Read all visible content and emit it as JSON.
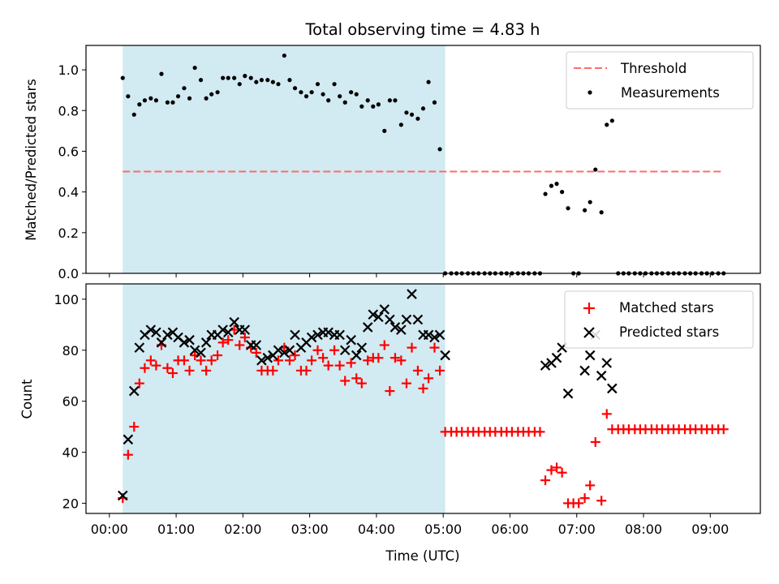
{
  "chart_data": [
    {
      "type": "scatter",
      "title": "Total observing time = 4.83 h",
      "ylabel": "Matched/Predicted stars",
      "xlabel": "",
      "xlim": [
        -0.35,
        9.75
      ],
      "ylim": [
        0,
        1.12
      ],
      "yticks": [
        0.0,
        0.2,
        0.4,
        0.6,
        0.8,
        1.0
      ],
      "ytick_labels": [
        "0.0",
        "0.2",
        "0.4",
        "0.6",
        "0.8",
        "1.0"
      ],
      "shaded_interval": {
        "x": [
          0.2,
          5.03
        ],
        "color": "#add8e6"
      },
      "legend_position": "upper right",
      "series": [
        {
          "name": "Threshold",
          "style": "dashed-line",
          "color": "#ff6b6b",
          "x": [
            0.2,
            9.2
          ],
          "y": [
            0.5,
            0.5
          ]
        },
        {
          "name": "Measurements",
          "style": "dot",
          "color": "#000000",
          "x": [
            0.2,
            0.28,
            0.37,
            0.45,
            0.53,
            0.62,
            0.7,
            0.78,
            0.87,
            0.95,
            1.03,
            1.12,
            1.2,
            1.28,
            1.37,
            1.45,
            1.53,
            1.62,
            1.7,
            1.78,
            1.87,
            1.95,
            2.03,
            2.12,
            2.2,
            2.28,
            2.37,
            2.45,
            2.53,
            2.62,
            2.7,
            2.78,
            2.87,
            2.95,
            3.03,
            3.12,
            3.2,
            3.28,
            3.37,
            3.45,
            3.53,
            3.62,
            3.7,
            3.78,
            3.87,
            3.95,
            4.03,
            4.12,
            4.2,
            4.28,
            4.37,
            4.45,
            4.53,
            4.62,
            4.7,
            4.78,
            4.87,
            4.95,
            5.03,
            5.12,
            5.2,
            5.28,
            5.37,
            5.45,
            5.53,
            5.62,
            5.7,
            5.78,
            5.87,
            5.95,
            6.03,
            6.12,
            6.2,
            6.28,
            6.37,
            6.45,
            6.53,
            6.62,
            6.7,
            6.78,
            6.87,
            6.95,
            7.03,
            7.12,
            7.2,
            7.28,
            7.37,
            7.45,
            7.53,
            7.62,
            7.7,
            7.78,
            7.87,
            7.95,
            8.03,
            8.12,
            8.2,
            8.28,
            8.37,
            8.45,
            8.53,
            8.62,
            8.7,
            8.78,
            8.87,
            8.95,
            9.03,
            9.12,
            9.2
          ],
          "y": [
            0.96,
            0.87,
            0.78,
            0.83,
            0.85,
            0.86,
            0.85,
            0.98,
            0.84,
            0.84,
            0.87,
            0.91,
            0.86,
            1.01,
            0.95,
            0.86,
            0.88,
            0.89,
            0.96,
            0.96,
            0.96,
            0.93,
            0.97,
            0.96,
            0.94,
            0.95,
            0.95,
            0.94,
            0.93,
            1.07,
            0.95,
            0.91,
            0.89,
            0.87,
            0.89,
            0.93,
            0.88,
            0.85,
            0.93,
            0.87,
            0.84,
            0.89,
            0.88,
            0.82,
            0.85,
            0.82,
            0.83,
            0.7,
            0.85,
            0.85,
            0.73,
            0.79,
            0.78,
            0.76,
            0.81,
            0.94,
            0.84,
            0.61,
            0.0,
            0.0,
            0.0,
            0.0,
            0.0,
            0.0,
            0.0,
            0.0,
            0.0,
            0.0,
            0.0,
            0.0,
            0.0,
            0.0,
            0.0,
            0.0,
            0.0,
            0.0,
            0.39,
            0.43,
            0.44,
            0.4,
            0.32,
            0.0,
            0.0,
            0.31,
            0.35,
            0.51,
            0.3,
            0.73,
            0.75,
            0.0,
            0.0,
            0.0,
            0.0,
            0.0,
            0.0,
            0.0,
            0.0,
            0.0,
            0.0,
            0.0,
            0.0,
            0.0,
            0.0,
            0.0,
            0.0,
            0.0,
            0.0,
            0.0,
            0.0
          ]
        }
      ]
    },
    {
      "type": "scatter",
      "title": "",
      "ylabel": "Count",
      "xlabel": "Time (UTC)",
      "xlim": [
        -0.35,
        9.75
      ],
      "ylim": [
        16,
        106
      ],
      "yticks": [
        20,
        40,
        60,
        80,
        100
      ],
      "ytick_labels": [
        "20",
        "40",
        "60",
        "80",
        "100"
      ],
      "xticks": [
        0,
        1,
        2,
        3,
        4,
        5,
        6,
        7,
        8,
        9
      ],
      "xtick_labels": [
        "00:00",
        "01:00",
        "02:00",
        "03:00",
        "04:00",
        "05:00",
        "06:00",
        "07:00",
        "08:00",
        "09:00"
      ],
      "shaded_interval": {
        "x": [
          0.2,
          5.03
        ],
        "color": "#add8e6"
      },
      "legend_position": "upper right",
      "series": [
        {
          "name": "Matched stars",
          "marker": "plus",
          "color": "#ff0000",
          "x": [
            0.2,
            0.28,
            0.37,
            0.45,
            0.53,
            0.62,
            0.7,
            0.78,
            0.87,
            0.95,
            1.03,
            1.12,
            1.2,
            1.28,
            1.37,
            1.45,
            1.53,
            1.62,
            1.7,
            1.78,
            1.87,
            1.95,
            2.03,
            2.12,
            2.2,
            2.28,
            2.37,
            2.45,
            2.53,
            2.62,
            2.7,
            2.78,
            2.87,
            2.95,
            3.03,
            3.12,
            3.2,
            3.28,
            3.37,
            3.45,
            3.53,
            3.62,
            3.7,
            3.78,
            3.87,
            3.95,
            4.03,
            4.12,
            4.2,
            4.28,
            4.37,
            4.45,
            4.53,
            4.62,
            4.7,
            4.78,
            4.87,
            4.95,
            5.03,
            5.12,
            5.2,
            5.28,
            5.37,
            5.45,
            5.53,
            5.62,
            5.7,
            5.78,
            5.87,
            5.95,
            6.03,
            6.12,
            6.2,
            6.28,
            6.37,
            6.45,
            6.53,
            6.62,
            6.7,
            6.78,
            6.87,
            6.95,
            7.03,
            7.12,
            7.2,
            7.28,
            7.37,
            7.45,
            7.53,
            7.62,
            7.7,
            7.78,
            7.87,
            7.95,
            8.03,
            8.12,
            8.2,
            8.28,
            8.37,
            8.45,
            8.53,
            8.62,
            8.7,
            8.78,
            8.87,
            8.95,
            9.03,
            9.12,
            9.2
          ],
          "y": [
            22,
            39,
            50,
            67,
            73,
            76,
            74,
            82,
            73,
            71,
            76,
            76,
            72,
            78,
            76,
            72,
            76,
            78,
            83,
            84,
            88,
            82,
            85,
            81,
            79,
            72,
            72,
            72,
            76,
            81,
            76,
            78,
            72,
            72,
            76,
            80,
            77,
            74,
            80,
            74,
            68,
            75,
            69,
            67,
            76,
            77,
            77,
            82,
            64,
            77,
            76,
            67,
            81,
            72,
            65,
            69,
            81,
            72,
            48,
            48,
            48,
            48,
            48,
            48,
            48,
            48,
            48,
            48,
            48,
            48,
            48,
            48,
            48,
            48,
            48,
            48,
            29,
            33,
            34,
            32,
            20,
            20,
            20,
            22,
            27,
            44,
            21,
            55,
            49,
            49,
            49,
            49,
            49,
            49,
            49,
            49,
            49,
            49,
            49,
            49,
            49,
            49,
            49,
            49,
            49,
            49,
            49,
            49,
            49
          ]
        },
        {
          "name": "Predicted stars",
          "marker": "x",
          "color": "#000000",
          "x": [
            0.2,
            0.28,
            0.37,
            0.45,
            0.53,
            0.62,
            0.7,
            0.78,
            0.87,
            0.95,
            1.03,
            1.12,
            1.2,
            1.28,
            1.37,
            1.45,
            1.53,
            1.62,
            1.7,
            1.78,
            1.87,
            1.95,
            2.03,
            2.12,
            2.2,
            2.28,
            2.37,
            2.45,
            2.53,
            2.62,
            2.7,
            2.78,
            2.87,
            2.95,
            3.03,
            3.12,
            3.2,
            3.28,
            3.37,
            3.45,
            3.53,
            3.62,
            3.7,
            3.78,
            3.87,
            3.95,
            4.03,
            4.12,
            4.2,
            4.28,
            4.37,
            4.45,
            4.53,
            4.62,
            4.7,
            4.78,
            4.87,
            4.95,
            5.03,
            6.53,
            6.62,
            6.7,
            6.78,
            6.87,
            7.12,
            7.2,
            7.28,
            7.37,
            7.45,
            7.53
          ],
          "y": [
            23,
            45,
            64,
            81,
            86,
            88,
            87,
            83,
            86,
            87,
            85,
            83,
            84,
            80,
            79,
            83,
            86,
            86,
            88,
            87,
            91,
            88,
            88,
            82,
            82,
            76,
            77,
            78,
            80,
            79,
            80,
            86,
            81,
            83,
            85,
            86,
            87,
            87,
            86,
            86,
            80,
            84,
            78,
            81,
            89,
            94,
            93,
            96,
            92,
            89,
            88,
            92,
            102,
            92,
            86,
            86,
            85,
            86,
            78,
            74,
            75,
            77,
            81,
            63,
            72,
            78,
            86,
            70,
            75,
            65
          ]
        }
      ]
    }
  ]
}
